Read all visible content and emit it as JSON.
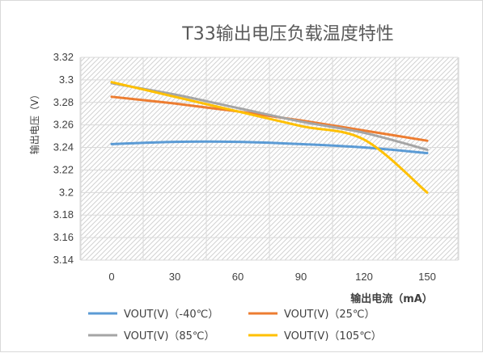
{
  "chart_data": {
    "type": "line",
    "title": "T33输出电压负载温度特性",
    "xlabel": "输出电流（mA）",
    "ylabel": "输出电压（V）",
    "x": [
      0,
      30,
      60,
      90,
      120,
      150
    ],
    "xticks": [
      "0",
      "30",
      "60",
      "90",
      "120",
      "150"
    ],
    "yticks": [
      "3.14",
      "3.16",
      "3.18",
      "3.2",
      "3.22",
      "3.24",
      "3.26",
      "3.28",
      "3.3",
      "3.32"
    ],
    "ylim": [
      3.14,
      3.32
    ],
    "grid": true,
    "legend_position": "bottom",
    "series": [
      {
        "name": "VOUT(V)（-40℃）",
        "color": "#5b9bd5",
        "values": [
          3.243,
          3.245,
          3.245,
          3.243,
          3.24,
          3.235
        ]
      },
      {
        "name": "VOUT(V)（25℃）",
        "color": "#ed7d31",
        "values": [
          3.285,
          3.279,
          3.272,
          3.264,
          3.255,
          3.246
        ]
      },
      {
        "name": "VOUT(V)（85℃）",
        "color": "#a5a5a5",
        "values": [
          3.297,
          3.287,
          3.275,
          3.263,
          3.253,
          3.238
        ]
      },
      {
        "name": "VOUT(V)（105℃）",
        "color": "#ffc000",
        "values": [
          3.298,
          3.285,
          3.272,
          3.259,
          3.247,
          3.2
        ]
      }
    ]
  }
}
